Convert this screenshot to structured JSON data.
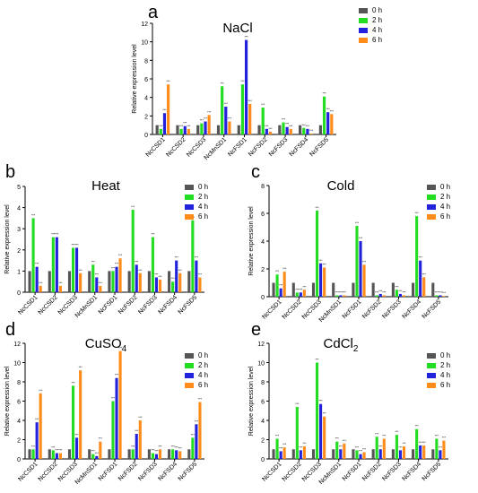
{
  "colors": {
    "0 h": "#555555",
    "2 h": "#22dd22",
    "4 h": "#2222dd",
    "6 h": "#ff8c1a"
  },
  "shared": {
    "ylabel": "Relative expression level",
    "legend": [
      "0 h",
      "2 h",
      "4 h",
      "6 h"
    ]
  },
  "chart_data": [
    {
      "panel": "a",
      "title": "NaCl",
      "type": "bar",
      "categories": [
        "NcCSD1",
        "NcCSD2",
        "NcCSD3",
        "NcMnSD1",
        "NcFSD1",
        "NcFSD2",
        "NcFSD3",
        "NcFSD4",
        "NcFSD5"
      ],
      "ylim": [
        0,
        12
      ],
      "yticks": [
        0,
        2,
        4,
        6,
        8,
        10,
        12
      ],
      "series": [
        {
          "name": "0 h",
          "values": [
            1,
            1,
            1,
            1,
            1,
            1,
            1,
            1,
            1
          ]
        },
        {
          "name": "2 h",
          "values": [
            0.6,
            0.6,
            1.2,
            5.2,
            5.4,
            2.9,
            1.3,
            0.7,
            4.1
          ]
        },
        {
          "name": "4 h",
          "values": [
            2.3,
            0.9,
            1.4,
            3.0,
            10.2,
            0.6,
            0.8,
            0.6,
            2.4
          ]
        },
        {
          "name": "6 h",
          "values": [
            5.4,
            0.6,
            2.1,
            1.4,
            3.3,
            0.3,
            0.6,
            0.1,
            2.2
          ]
        }
      ]
    },
    {
      "panel": "b",
      "title": "Heat",
      "type": "bar",
      "categories": [
        "NcCSD1",
        "NcCSD2",
        "NcCSD3",
        "NcMnSD1",
        "NcFSD1",
        "NcFSD2",
        "NcFSD3",
        "NcFSD4",
        "NcFSD5"
      ],
      "ylim": [
        0,
        5
      ],
      "yticks": [
        0,
        1,
        2,
        3,
        4,
        5
      ],
      "series": [
        {
          "name": "0 h",
          "values": [
            1,
            1,
            1,
            1,
            1,
            1,
            1,
            1,
            1
          ]
        },
        {
          "name": "2 h",
          "values": [
            3.5,
            2.6,
            2.1,
            1.3,
            1.0,
            3.9,
            2.6,
            0.5,
            3.4
          ]
        },
        {
          "name": "4 h",
          "values": [
            1.2,
            2.6,
            2.1,
            0.7,
            1.2,
            1.3,
            0.7,
            1.5,
            1.5
          ]
        },
        {
          "name": "6 h",
          "values": [
            0.3,
            0.3,
            0.9,
            0.3,
            1.6,
            0.9,
            0.6,
            0.9,
            0.7
          ]
        }
      ]
    },
    {
      "panel": "c",
      "title": "Cold",
      "type": "bar",
      "categories": [
        "NcCSD1",
        "NcCSD2",
        "NcCSD3",
        "NcMnSD1",
        "NcFSD1",
        "NcFSD2",
        "NcFSD3",
        "NcFSD4",
        "NcFSD5"
      ],
      "ylim": [
        0,
        8
      ],
      "yticks": [
        0,
        2,
        4,
        6,
        8
      ],
      "series": [
        {
          "name": "0 h",
          "values": [
            1,
            1,
            1,
            1,
            1,
            1,
            1,
            1,
            1
          ]
        },
        {
          "name": "2 h",
          "values": [
            1.6,
            0.3,
            6.2,
            0.1,
            5.1,
            0.1,
            0.5,
            5.8,
            0.1
          ]
        },
        {
          "name": "4 h",
          "values": [
            0.6,
            0.3,
            2.4,
            0.1,
            4.0,
            0.2,
            0.2,
            2.6,
            0.1
          ]
        },
        {
          "name": "6 h",
          "values": [
            1.8,
            0.5,
            2.1,
            0.1,
            2.3,
            0.1,
            0.1,
            1.4,
            0.05
          ]
        }
      ]
    },
    {
      "panel": "d",
      "title": "CuSO4",
      "type": "bar",
      "categories": [
        "NcCSD1",
        "NcCSD2",
        "NcCSD3",
        "NcMnSD1",
        "NcFSD1",
        "NcFSD2",
        "NcFSD3",
        "NcFSD4",
        "NcFSD5"
      ],
      "ylim": [
        0,
        12
      ],
      "yticks": [
        0,
        2,
        4,
        6,
        8,
        10,
        12
      ],
      "series": [
        {
          "name": "0 h",
          "values": [
            1,
            1,
            1,
            1,
            1,
            1,
            1,
            1,
            1
          ]
        },
        {
          "name": "2 h",
          "values": [
            1.0,
            0.9,
            7.6,
            0.5,
            6.0,
            1.0,
            0.6,
            1.0,
            2.2
          ]
        },
        {
          "name": "4 h",
          "values": [
            3.8,
            0.6,
            2.2,
            0.3,
            8.4,
            2.6,
            0.5,
            0.9,
            3.6
          ]
        },
        {
          "name": "6 h",
          "values": [
            6.8,
            0.6,
            9.2,
            1.8,
            11.2,
            4.0,
            1.0,
            0.8,
            5.9
          ]
        }
      ]
    },
    {
      "panel": "e",
      "title": "CdCl2",
      "type": "bar",
      "categories": [
        "NcCSD1",
        "NcCSD2",
        "NcCSD3",
        "NcMnSD1",
        "NcFSD1",
        "NcFSD2",
        "NcFSD3",
        "NcFSD4",
        "NcFSD5"
      ],
      "ylim": [
        0,
        12
      ],
      "yticks": [
        0,
        2,
        4,
        6,
        8,
        10,
        12
      ],
      "series": [
        {
          "name": "0 h",
          "values": [
            1,
            1,
            1,
            1,
            1,
            1,
            1,
            1,
            1
          ]
        },
        {
          "name": "2 h",
          "values": [
            2.1,
            5.4,
            10.0,
            1.8,
            0.9,
            2.3,
            2.5,
            3.1,
            2.1
          ]
        },
        {
          "name": "4 h",
          "values": [
            0.8,
            0.9,
            5.7,
            1.0,
            0.5,
            1.0,
            0.9,
            1.4,
            0.9
          ]
        },
        {
          "name": "6 h",
          "values": [
            1.2,
            1.3,
            4.4,
            1.6,
            0.7,
            2.1,
            1.3,
            1.4,
            1.9
          ]
        }
      ]
    }
  ]
}
